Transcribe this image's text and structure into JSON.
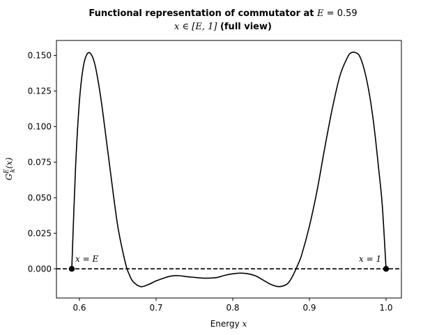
{
  "chart_data": {
    "type": "line",
    "title_line1_prefix": "Functional representation of commutator at ",
    "title_line1_var": "E",
    "title_line1_eq": " = 0.59",
    "title_line2_math": "x ∈ [E, 1]",
    "title_line2_suffix": " (full view)",
    "xlabel_text": "Energy ",
    "xlabel_var": "x",
    "ylabel": "G",
    "ylabel_sup": "E",
    "ylabel_sub": "k",
    "ylabel_arg": "(x)",
    "xlim": [
      0.57,
      1.02
    ],
    "ylim": [
      -0.0205,
      0.1605
    ],
    "x_ticks": [
      0.6,
      0.7,
      0.8,
      0.9,
      1.0
    ],
    "x_tick_labels": [
      "0.6",
      "0.7",
      "0.8",
      "0.9",
      "1.0"
    ],
    "y_ticks": [
      0.0,
      0.025,
      0.05,
      0.075,
      0.1,
      0.125,
      0.15
    ],
    "y_tick_labels": [
      "0.000",
      "0.025",
      "0.050",
      "0.075",
      "0.100",
      "0.125",
      "0.150"
    ],
    "grid": false,
    "series": [
      {
        "color": "#000000",
        "style": "solid",
        "x": [
          0.59,
          0.595,
          0.6,
          0.605,
          0.61,
          0.615,
          0.62,
          0.625,
          0.63,
          0.64,
          0.65,
          0.66,
          0.665,
          0.67,
          0.68,
          0.69,
          0.7,
          0.71,
          0.72,
          0.73,
          0.74,
          0.75,
          0.76,
          0.77,
          0.78,
          0.79,
          0.8,
          0.81,
          0.82,
          0.83,
          0.84,
          0.85,
          0.86,
          0.87,
          0.875,
          0.88,
          0.885,
          0.89,
          0.9,
          0.91,
          0.92,
          0.93,
          0.94,
          0.95,
          0.955,
          0.96,
          0.965,
          0.97,
          0.975,
          0.98,
          0.985,
          0.99,
          0.995,
          1.0
        ],
        "y": [
          0.0,
          0.072,
          0.118,
          0.142,
          0.151,
          0.151,
          0.144,
          0.13,
          0.112,
          0.07,
          0.03,
          0.004,
          -0.004,
          -0.009,
          -0.0125,
          -0.011,
          -0.0085,
          -0.0065,
          -0.005,
          -0.0048,
          -0.0055,
          -0.006,
          -0.0065,
          -0.0065,
          -0.006,
          -0.0045,
          -0.0035,
          -0.003,
          -0.0035,
          -0.005,
          -0.008,
          -0.011,
          -0.0125,
          -0.011,
          -0.008,
          -0.003,
          0.003,
          0.01,
          0.03,
          0.055,
          0.085,
          0.113,
          0.136,
          0.149,
          0.152,
          0.152,
          0.15,
          0.143,
          0.132,
          0.117,
          0.097,
          0.072,
          0.045,
          0.0
        ]
      },
      {
        "color": "#000000",
        "style": "dashed",
        "x": [
          0.57,
          1.02
        ],
        "y": [
          0.0,
          0.0
        ]
      }
    ],
    "markers": [
      {
        "x": 0.59,
        "y": 0.0,
        "label": "x = E"
      },
      {
        "x": 1.0,
        "y": 0.0,
        "label": "x = 1"
      }
    ]
  }
}
